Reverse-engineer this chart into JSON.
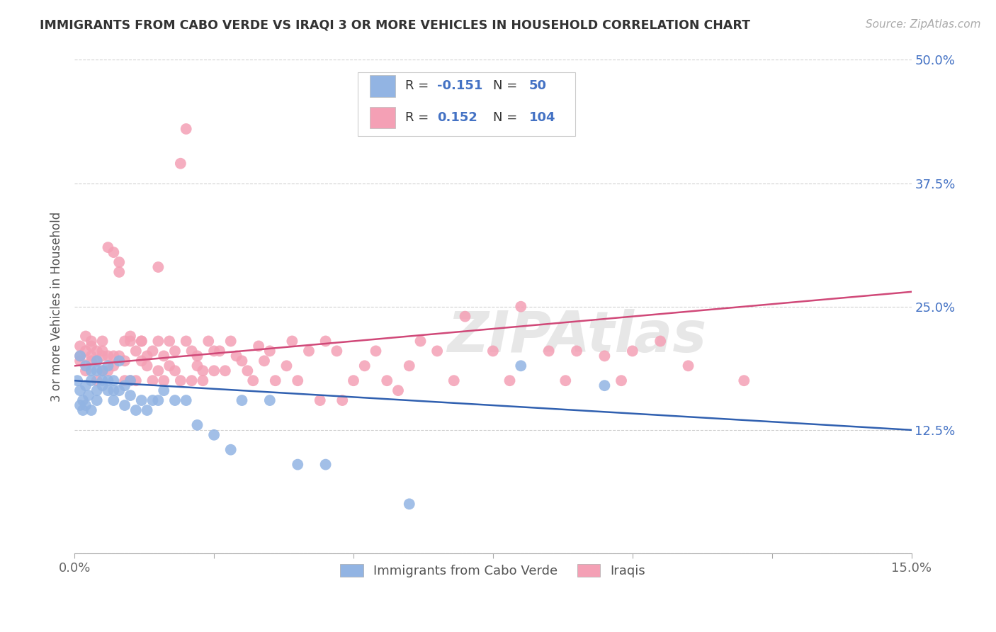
{
  "title": "IMMIGRANTS FROM CABO VERDE VS IRAQI 3 OR MORE VEHICLES IN HOUSEHOLD CORRELATION CHART",
  "source": "Source: ZipAtlas.com",
  "ylabel": "3 or more Vehicles in Household",
  "cabo_verde_color": "#92b4e3",
  "iraqi_color": "#f4a0b5",
  "cabo_verde_line_color": "#3060b0",
  "iraqi_line_color": "#d04878",
  "cabo_verde_label": "Immigrants from Cabo Verde",
  "iraqi_label": "Iraqis",
  "watermark": "ZIPAtlas",
  "xlim": [
    0.0,
    0.15
  ],
  "ylim": [
    0.0,
    0.5
  ],
  "cabo_verde_x": [
    0.0005,
    0.001,
    0.001,
    0.001,
    0.0015,
    0.0015,
    0.002,
    0.002,
    0.002,
    0.0025,
    0.003,
    0.003,
    0.003,
    0.004,
    0.004,
    0.004,
    0.004,
    0.005,
    0.005,
    0.005,
    0.006,
    0.006,
    0.006,
    0.007,
    0.007,
    0.007,
    0.008,
    0.008,
    0.009,
    0.009,
    0.01,
    0.01,
    0.011,
    0.012,
    0.013,
    0.014,
    0.015,
    0.016,
    0.018,
    0.02,
    0.022,
    0.025,
    0.028,
    0.03,
    0.035,
    0.04,
    0.045,
    0.06,
    0.08,
    0.095
  ],
  "cabo_verde_y": [
    0.175,
    0.15,
    0.165,
    0.2,
    0.145,
    0.155,
    0.17,
    0.15,
    0.19,
    0.16,
    0.145,
    0.175,
    0.185,
    0.155,
    0.165,
    0.185,
    0.195,
    0.17,
    0.175,
    0.185,
    0.165,
    0.175,
    0.19,
    0.155,
    0.165,
    0.175,
    0.165,
    0.195,
    0.15,
    0.17,
    0.16,
    0.175,
    0.145,
    0.155,
    0.145,
    0.155,
    0.155,
    0.165,
    0.155,
    0.155,
    0.13,
    0.12,
    0.105,
    0.155,
    0.155,
    0.09,
    0.09,
    0.05,
    0.19,
    0.17
  ],
  "iraqi_x": [
    0.001,
    0.001,
    0.001,
    0.002,
    0.002,
    0.002,
    0.003,
    0.003,
    0.003,
    0.003,
    0.004,
    0.004,
    0.004,
    0.005,
    0.005,
    0.005,
    0.005,
    0.006,
    0.006,
    0.006,
    0.007,
    0.007,
    0.007,
    0.008,
    0.008,
    0.008,
    0.009,
    0.009,
    0.009,
    0.01,
    0.01,
    0.01,
    0.011,
    0.011,
    0.012,
    0.012,
    0.012,
    0.013,
    0.013,
    0.014,
    0.014,
    0.015,
    0.015,
    0.015,
    0.016,
    0.016,
    0.017,
    0.017,
    0.018,
    0.018,
    0.019,
    0.019,
    0.02,
    0.02,
    0.021,
    0.021,
    0.022,
    0.022,
    0.023,
    0.023,
    0.024,
    0.025,
    0.025,
    0.026,
    0.027,
    0.028,
    0.029,
    0.03,
    0.031,
    0.032,
    0.033,
    0.034,
    0.035,
    0.036,
    0.038,
    0.039,
    0.04,
    0.042,
    0.044,
    0.045,
    0.047,
    0.048,
    0.05,
    0.052,
    0.054,
    0.056,
    0.058,
    0.06,
    0.062,
    0.065,
    0.068,
    0.07,
    0.075,
    0.078,
    0.08,
    0.085,
    0.088,
    0.09,
    0.095,
    0.098,
    0.1,
    0.105,
    0.11,
    0.12
  ],
  "iraqi_y": [
    0.21,
    0.195,
    0.2,
    0.185,
    0.205,
    0.22,
    0.2,
    0.21,
    0.195,
    0.215,
    0.175,
    0.195,
    0.205,
    0.215,
    0.2,
    0.185,
    0.205,
    0.185,
    0.2,
    0.31,
    0.19,
    0.2,
    0.305,
    0.295,
    0.285,
    0.2,
    0.175,
    0.215,
    0.195,
    0.175,
    0.22,
    0.215,
    0.175,
    0.205,
    0.195,
    0.215,
    0.215,
    0.19,
    0.2,
    0.205,
    0.175,
    0.185,
    0.29,
    0.215,
    0.175,
    0.2,
    0.19,
    0.215,
    0.185,
    0.205,
    0.395,
    0.175,
    0.43,
    0.215,
    0.205,
    0.175,
    0.2,
    0.19,
    0.185,
    0.175,
    0.215,
    0.205,
    0.185,
    0.205,
    0.185,
    0.215,
    0.2,
    0.195,
    0.185,
    0.175,
    0.21,
    0.195,
    0.205,
    0.175,
    0.19,
    0.215,
    0.175,
    0.205,
    0.155,
    0.215,
    0.205,
    0.155,
    0.175,
    0.19,
    0.205,
    0.175,
    0.165,
    0.19,
    0.215,
    0.205,
    0.175,
    0.24,
    0.205,
    0.175,
    0.25,
    0.205,
    0.175,
    0.205,
    0.2,
    0.175,
    0.205,
    0.215,
    0.19,
    0.175
  ]
}
